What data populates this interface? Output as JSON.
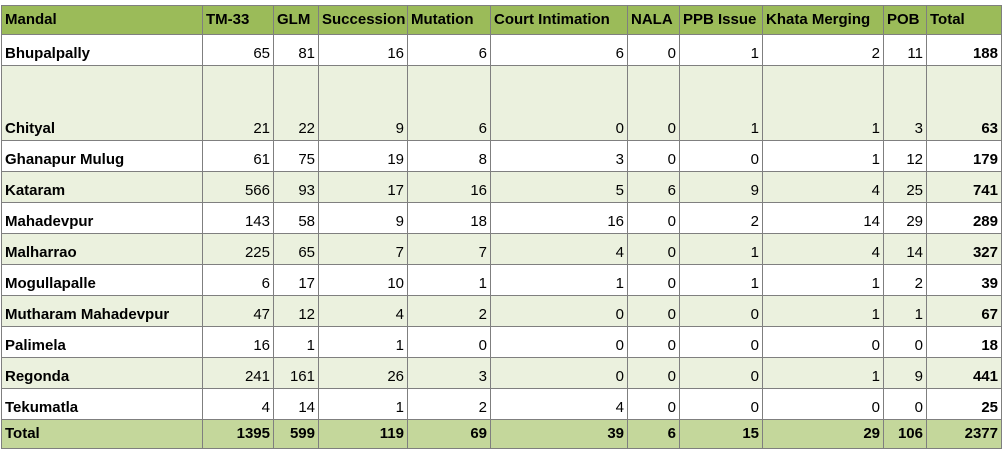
{
  "columns": [
    "Mandal",
    "TM-33",
    "GLM",
    "Succession",
    "Mutation",
    "Court Intimation",
    "NALA",
    "PPB Issue",
    "Khata Merging",
    "POB",
    "Total"
  ],
  "rows": [
    {
      "name": "Bhupalpally",
      "values": [
        "65",
        "81",
        "16",
        "6",
        "6",
        "0",
        "1",
        "2",
        "11"
      ],
      "total": "188"
    },
    {
      "name": "Chityal",
      "values": [
        "21",
        "22",
        "9",
        "6",
        "0",
        "0",
        "1",
        "1",
        "3"
      ],
      "total": "63"
    },
    {
      "name": "Ghanapur Mulug",
      "values": [
        "61",
        "75",
        "19",
        "8",
        "3",
        "0",
        "0",
        "1",
        "12"
      ],
      "total": "179"
    },
    {
      "name": "Kataram",
      "values": [
        "566",
        "93",
        "17",
        "16",
        "5",
        "6",
        "9",
        "4",
        "25"
      ],
      "total": "741"
    },
    {
      "name": "Mahadevpur",
      "values": [
        "143",
        "58",
        "9",
        "18",
        "16",
        "0",
        "2",
        "14",
        "29"
      ],
      "total": "289"
    },
    {
      "name": "Malharrao",
      "values": [
        "225",
        "65",
        "7",
        "7",
        "4",
        "0",
        "1",
        "4",
        "14"
      ],
      "total": "327"
    },
    {
      "name": "Mogullapalle",
      "values": [
        "6",
        "17",
        "10",
        "1",
        "1",
        "0",
        "1",
        "1",
        "2"
      ],
      "total": "39"
    },
    {
      "name": "Mutharam Mahadevpur",
      "values": [
        "47",
        "12",
        "4",
        "2",
        "0",
        "0",
        "0",
        "1",
        "1"
      ],
      "total": "67"
    },
    {
      "name": "Palimela",
      "values": [
        "16",
        "1",
        "1",
        "0",
        "0",
        "0",
        "0",
        "0",
        "0"
      ],
      "total": "18"
    },
    {
      "name": "Regonda",
      "values": [
        "241",
        "161",
        "26",
        "3",
        "0",
        "0",
        "0",
        "1",
        "9"
      ],
      "total": "441"
    },
    {
      "name": "Tekumatla",
      "values": [
        "4",
        "14",
        "1",
        "2",
        "4",
        "0",
        "0",
        "0",
        "0"
      ],
      "total": "25"
    }
  ],
  "totals": {
    "label": "Total",
    "values": [
      "1395",
      "599",
      "119",
      "69",
      "39",
      "6",
      "15",
      "29",
      "106"
    ],
    "total": "2377"
  }
}
